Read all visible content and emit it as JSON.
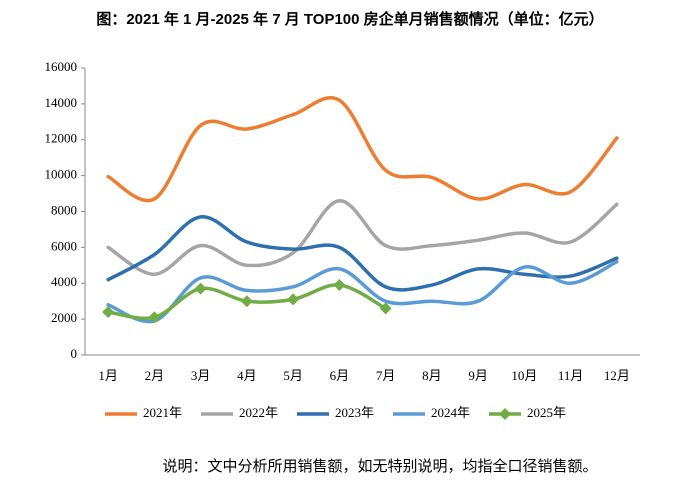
{
  "chart_data": {
    "type": "line",
    "title": "图：2021 年 1 月-2025 年 7 月 TOP100 房企单月销售额情况（单位：亿元）",
    "note": "说明：文中分析所用销售额，如无特别说明，均指全口径销售额。",
    "categories": [
      "1月",
      "2月",
      "3月",
      "4月",
      "5月",
      "6月",
      "7月",
      "8月",
      "9月",
      "10月",
      "11月",
      "12月"
    ],
    "ylim": [
      0,
      16000
    ],
    "yticks": [
      0,
      2000,
      4000,
      6000,
      8000,
      10000,
      12000,
      14000,
      16000
    ],
    "legend": "bottom",
    "series": [
      {
        "name": "2021年",
        "color": "#ed7d31",
        "values": [
          9950,
          8700,
          12800,
          12600,
          13400,
          14200,
          10300,
          9900,
          8700,
          9500,
          9100,
          12100
        ]
      },
      {
        "name": "2022年",
        "color": "#a5a5a5",
        "values": [
          6000,
          4500,
          6100,
          5000,
          5700,
          8600,
          6100,
          6100,
          6400,
          6800,
          6300,
          8400
        ]
      },
      {
        "name": "2023年",
        "color": "#2e6fad",
        "values": [
          4200,
          5600,
          7700,
          6300,
          5900,
          6000,
          3800,
          3900,
          4800,
          4500,
          4400,
          5400
        ]
      },
      {
        "name": "2024年",
        "color": "#5b9bd5",
        "values": [
          2800,
          1900,
          4300,
          3600,
          3800,
          4800,
          3000,
          3000,
          3000,
          4900,
          4000,
          5200
        ]
      },
      {
        "name": "2025年",
        "color": "#70ad47",
        "marker": "diamond",
        "values": [
          2400,
          2100,
          3700,
          3000,
          3100,
          3900,
          2600,
          null,
          null,
          null,
          null,
          null
        ]
      }
    ]
  }
}
